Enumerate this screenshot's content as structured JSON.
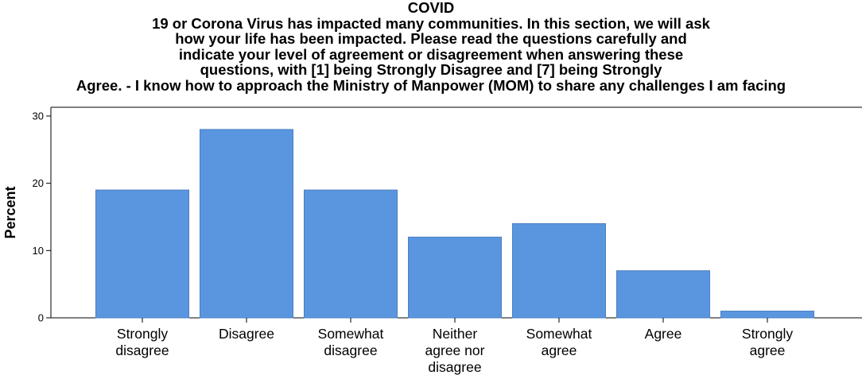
{
  "chart_data": {
    "type": "bar",
    "title_lines": [
      "COVID",
      "19 or Corona Virus has impacted many communities. In this section, we will ask",
      "how your life has been impacted. Please read the questions carefully and",
      "indicate your level of agreement or disagreement when answering these",
      "questions, with [1] being Strongly Disagree and [7] being Strongly",
      "Agree. - I know how to approach the Ministry of Manpower (MOM) to share any challenges I am facing"
    ],
    "categories": [
      [
        "Strongly",
        "disagree"
      ],
      [
        "Disagree"
      ],
      [
        "Somewhat",
        "disagree"
      ],
      [
        "Neither",
        "agree nor",
        "disagree"
      ],
      [
        "Somewhat",
        "agree"
      ],
      [
        "Agree"
      ],
      [
        "Strongly",
        "agree"
      ]
    ],
    "values": [
      19,
      28,
      19,
      12,
      14,
      7,
      1
    ],
    "ylabel": "Percent",
    "ylim": [
      0,
      31
    ],
    "yticks": [
      "0",
      "10",
      "20",
      "30"
    ],
    "grid": false,
    "bar_color": "#5a96e0",
    "bar_edge_color": "#4a7fc0"
  }
}
